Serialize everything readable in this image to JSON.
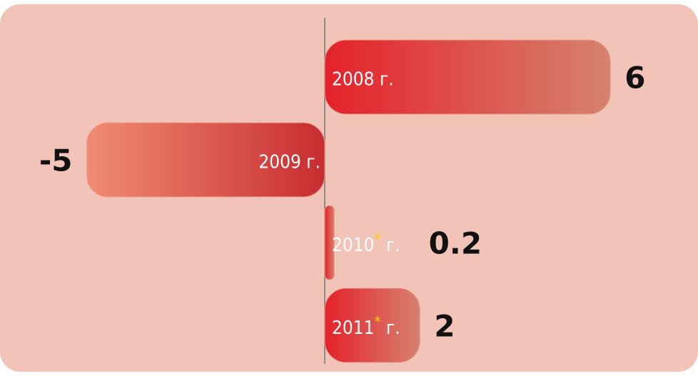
{
  "chart_data": {
    "type": "bar",
    "orientation": "horizontal",
    "categories": [
      "2008 г.",
      "2009 г.",
      "2010* г.",
      "2011* г."
    ],
    "values": [
      6,
      -5,
      0.2,
      2
    ],
    "color": "#e02a2a",
    "background": "#f2c4b8"
  }
}
